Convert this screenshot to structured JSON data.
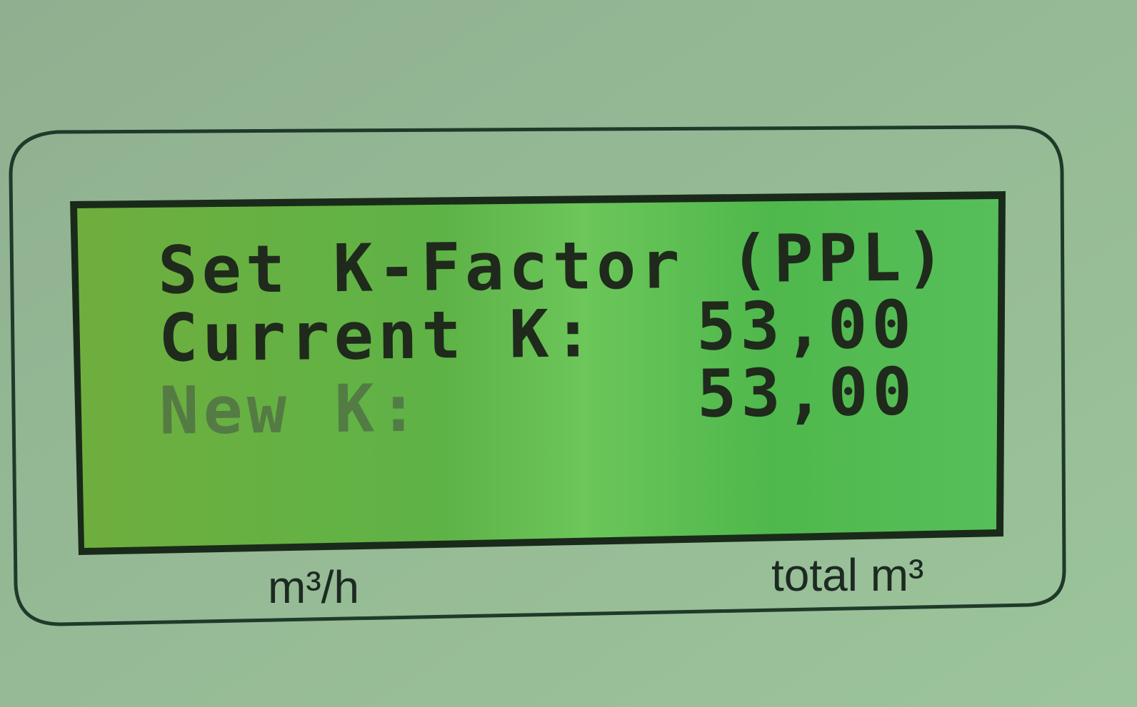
{
  "display": {
    "title": "Set K-Factor",
    "unit": "(PPL)",
    "rows": [
      {
        "label": "Current K:",
        "value": "53,00"
      },
      {
        "label": "New K:",
        "value": "53,00"
      }
    ]
  },
  "panel": {
    "left_label": "m³/h",
    "right_label": "total m³"
  }
}
